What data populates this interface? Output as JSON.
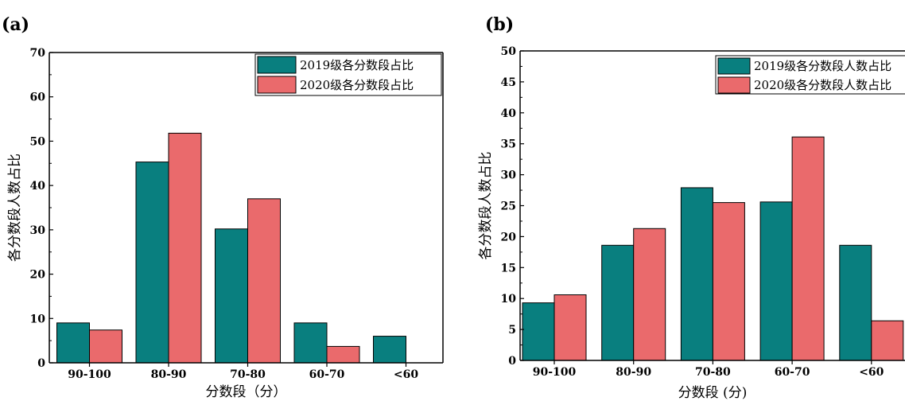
{
  "colors": {
    "series_0": "#097f7f",
    "series_1": "#ea6a6c"
  },
  "chart_data": [
    {
      "type": "bar",
      "panel_label": "(a)",
      "categories": [
        "90-100",
        "80-90",
        "70-80",
        "60-70",
        "<60"
      ],
      "series": [
        {
          "name": "2019级各分数段占比",
          "values": [
            9,
            45.3,
            30.2,
            9,
            6
          ]
        },
        {
          "name": "2020级各分数段占比",
          "values": [
            7.4,
            51.8,
            37,
            3.7,
            0
          ]
        }
      ],
      "xlabel": "分数段（分）",
      "ylabel": "各分数段人数占比",
      "ylim": [
        0,
        70
      ],
      "yticks": [
        0,
        10,
        20,
        30,
        40,
        50,
        60,
        70
      ],
      "legend": "top-right",
      "grid": false
    },
    {
      "type": "bar",
      "panel_label": "(b)",
      "categories": [
        "90-100",
        "80-90",
        "70-80",
        "60-70",
        "<60"
      ],
      "series": [
        {
          "name": "2019级各分数段人数占比",
          "values": [
            9.3,
            18.6,
            27.9,
            25.6,
            18.6
          ]
        },
        {
          "name": "2020级各分数段人数占比",
          "values": [
            10.6,
            21.3,
            25.5,
            36.1,
            6.4
          ]
        }
      ],
      "xlabel": "分数段 (分)",
      "ylabel": "各分数段人数占比",
      "ylim": [
        0,
        50
      ],
      "yticks": [
        0,
        5,
        10,
        15,
        20,
        25,
        30,
        35,
        40,
        45,
        50
      ],
      "legend": "top-right",
      "grid": false
    }
  ]
}
